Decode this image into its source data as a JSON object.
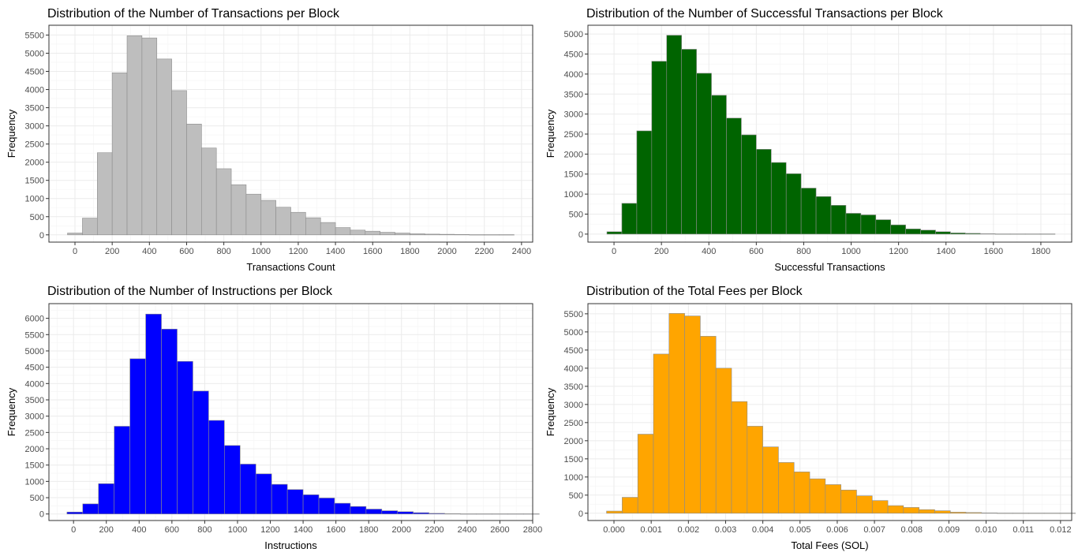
{
  "chart_data": [
    {
      "type": "bar",
      "title": "Distribution of the Number of Transactions per Block",
      "xlabel": "Transactions Count",
      "ylabel": "Frequency",
      "fill": "#bebebe",
      "stroke": "#8c8c8c",
      "grid": true,
      "bin_start": -40,
      "bin_width": 80,
      "values": [
        50,
        460,
        2260,
        4460,
        5480,
        5420,
        4840,
        3970,
        3050,
        2390,
        1820,
        1380,
        1120,
        950,
        760,
        620,
        470,
        340,
        200,
        130,
        100,
        70,
        50,
        30,
        20,
        15,
        10,
        5,
        5,
        5
      ],
      "xlim": [
        -140,
        2460
      ],
      "ylim": [
        -200,
        5770
      ],
      "xticks": [
        0,
        200,
        400,
        600,
        800,
        1000,
        1200,
        1400,
        1600,
        1800,
        2000,
        2200,
        2400
      ],
      "xtick_labels": [
        "0",
        "200",
        "400",
        "600",
        "800",
        "1000",
        "1200",
        "1400",
        "1600",
        "1800",
        "2000",
        "2200",
        "2400"
      ],
      "yticks": [
        0,
        500,
        1000,
        1500,
        2000,
        2500,
        3000,
        3500,
        4000,
        4500,
        5000,
        5500
      ],
      "ytick_labels": [
        "0",
        "500",
        "1000",
        "1500",
        "2000",
        "2500",
        "3000",
        "3500",
        "4000",
        "4500",
        "5000",
        "5500"
      ]
    },
    {
      "type": "bar",
      "title": "Distribution of the Number of Successful Transactions per Block",
      "xlabel": "Successful Transactions",
      "ylabel": "Frequency",
      "fill": "#006400",
      "stroke": "#8c8c8c",
      "grid": true,
      "bin_start": -30,
      "bin_width": 63,
      "values": [
        60,
        770,
        2580,
        4320,
        4970,
        4620,
        4020,
        3470,
        2900,
        2480,
        2120,
        1790,
        1510,
        1150,
        940,
        720,
        520,
        480,
        360,
        230,
        130,
        100,
        60,
        30,
        20,
        10,
        5,
        5,
        5,
        5
      ],
      "xlim": [
        -110,
        1930
      ],
      "ylim": [
        -200,
        5220
      ],
      "xticks": [
        0,
        200,
        400,
        600,
        800,
        1000,
        1200,
        1400,
        1600,
        1800
      ],
      "xtick_labels": [
        "0",
        "200",
        "400",
        "600",
        "800",
        "1000",
        "1200",
        "1400",
        "1600",
        "1800"
      ],
      "yticks": [
        0,
        500,
        1000,
        1500,
        2000,
        2500,
        3000,
        3500,
        4000,
        4500,
        5000
      ],
      "ytick_labels": [
        "0",
        "500",
        "1000",
        "1500",
        "2000",
        "2500",
        "3000",
        "3500",
        "4000",
        "4500",
        "5000"
      ]
    },
    {
      "type": "bar",
      "title": "Distribution of the Number of Instructions per Block",
      "xlabel": "Instructions",
      "ylabel": "Frequency",
      "fill": "#0000ff",
      "stroke": "#8c8c8c",
      "grid": true,
      "bin_start": -40,
      "bin_width": 96,
      "values": [
        60,
        310,
        930,
        2690,
        4760,
        6130,
        5670,
        4680,
        3770,
        2870,
        2100,
        1530,
        1230,
        910,
        750,
        590,
        490,
        330,
        230,
        150,
        100,
        70,
        40,
        20,
        10,
        5,
        5,
        5,
        5,
        5
      ],
      "xlim": [
        -150,
        2800
      ],
      "ylim": [
        -200,
        6450
      ],
      "xticks": [
        0,
        200,
        400,
        600,
        800,
        1000,
        1200,
        1400,
        1600,
        1800,
        2000,
        2200,
        2400,
        2600,
        2800
      ],
      "xtick_labels": [
        "0",
        "200",
        "400",
        "600",
        "800",
        "1000",
        "1200",
        "1400",
        "1600",
        "1800",
        "2000",
        "2200",
        "2400",
        "2600",
        "2800"
      ],
      "yticks": [
        0,
        500,
        1000,
        1500,
        2000,
        2500,
        3000,
        3500,
        4000,
        4500,
        5000,
        5500,
        6000
      ],
      "ytick_labels": [
        "0",
        "500",
        "1000",
        "1500",
        "2000",
        "2500",
        "3000",
        "3500",
        "4000",
        "4500",
        "5000",
        "5500",
        "6000"
      ]
    },
    {
      "type": "bar",
      "title": "Distribution of the Total Fees per Block",
      "xlabel": "Total Fees (SOL)",
      "ylabel": "Frequency",
      "fill": "#ffa500",
      "stroke": "#8c8c8c",
      "grid": true,
      "bin_start": -0.0002,
      "bin_width": 0.00042,
      "values": [
        60,
        440,
        2180,
        4390,
        5510,
        5440,
        4880,
        4000,
        3080,
        2400,
        1830,
        1400,
        1140,
        950,
        790,
        640,
        480,
        350,
        210,
        160,
        100,
        70,
        30,
        20,
        10,
        5,
        5,
        5,
        5,
        5
      ],
      "xlim": [
        -0.0007,
        0.0123
      ],
      "ylim": [
        -200,
        5780
      ],
      "xticks": [
        0.0,
        0.001,
        0.002,
        0.003,
        0.004,
        0.005,
        0.006,
        0.007,
        0.008,
        0.009,
        0.01,
        0.011,
        0.012
      ],
      "xtick_labels": [
        "0.000",
        "0.001",
        "0.002",
        "0.003",
        "0.004",
        "0.005",
        "0.006",
        "0.007",
        "0.008",
        "0.009",
        "0.010",
        "0.011",
        "0.012"
      ],
      "yticks": [
        0,
        500,
        1000,
        1500,
        2000,
        2500,
        3000,
        3500,
        4000,
        4500,
        5000,
        5500
      ],
      "ytick_labels": [
        "0",
        "500",
        "1000",
        "1500",
        "2000",
        "2500",
        "3000",
        "3500",
        "4000",
        "4500",
        "5000",
        "5500"
      ]
    }
  ]
}
